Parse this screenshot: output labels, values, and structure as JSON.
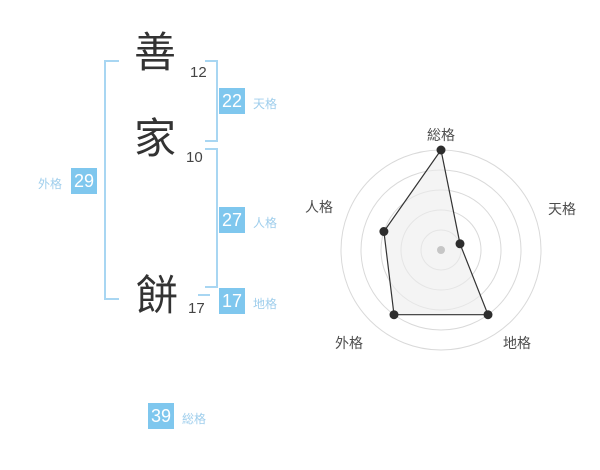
{
  "name_block": {
    "characters": [
      {
        "char": "善",
        "strokes": "12"
      },
      {
        "char": "家",
        "strokes": "10"
      },
      {
        "char": "餅",
        "strokes": "17"
      }
    ],
    "badges": {
      "tenkaku": {
        "value": "22",
        "label": "天格"
      },
      "jinkaku": {
        "value": "27",
        "label": "人格"
      },
      "chikaku": {
        "value": "17",
        "label": "地格"
      },
      "gaikaku": {
        "value": "29",
        "label": "外格"
      },
      "soukaku": {
        "value": "39",
        "label": "総格"
      }
    }
  },
  "colors": {
    "badge_blue": "#7FC7EE",
    "label_blue": "#9FCEEC",
    "bracket_blue": "#A8D6F2",
    "text_dark": "#333333",
    "ring_gray": "#D9D9D9"
  },
  "chart_data": {
    "type": "radar",
    "axes": [
      "総格",
      "天格",
      "地格",
      "外格",
      "人格"
    ],
    "values": [
      5,
      1,
      4,
      4,
      3
    ],
    "max": 5,
    "rings": 5,
    "start_angle_deg": 90,
    "direction": "clockwise",
    "legend": "none",
    "polygon_fill": "#ECECEC",
    "polygon_fill_opacity": 0.6,
    "polygon_stroke": "#333333",
    "point_color": "#2D2D2D",
    "center_dot_color": "#C6C6C6",
    "ring_color": "#D9D9D9"
  }
}
